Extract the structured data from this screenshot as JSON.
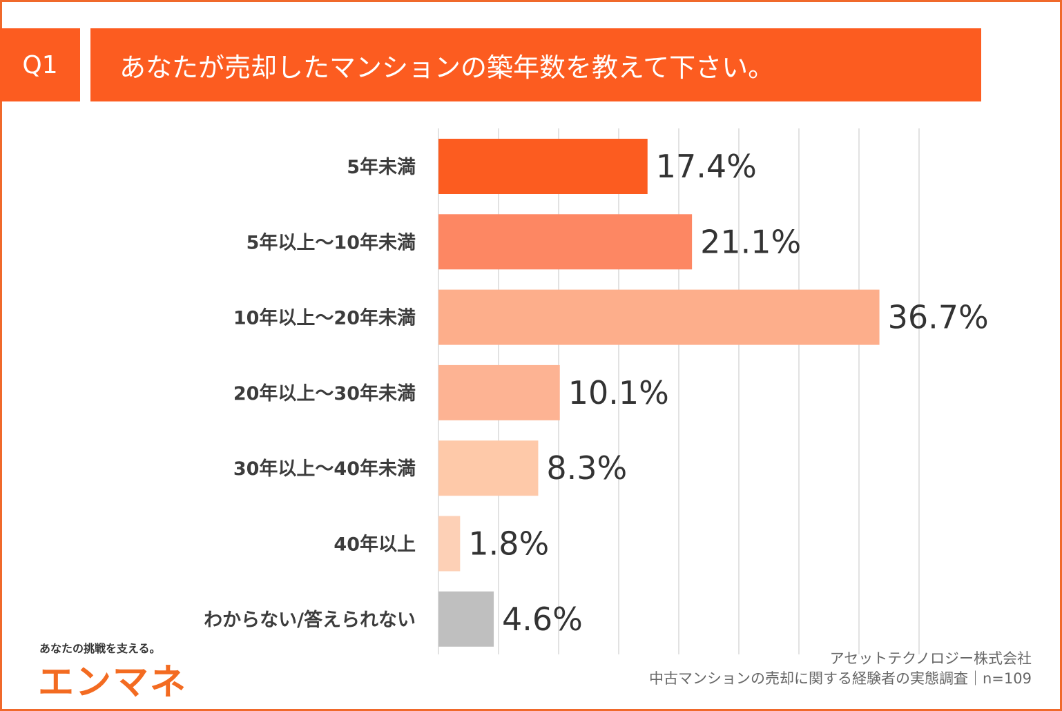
{
  "header": {
    "q_label": "Q1",
    "title": "あなたが売却したマンションの築年数を教えて下さい。"
  },
  "chart_data": {
    "type": "bar",
    "orientation": "horizontal",
    "title": "あなたが売却したマンションの築年数を教えて下さい。",
    "categories": [
      "5年未満",
      "5年以上〜10年未満",
      "10年以上〜20年未満",
      "20年以上〜30年未満",
      "30年以上〜40年未満",
      "40年以上",
      "わからない/答えられない"
    ],
    "values": [
      17.4,
      21.1,
      36.7,
      10.1,
      8.3,
      1.8,
      4.6
    ],
    "value_labels": [
      "17.4%",
      "21.1%",
      "36.7%",
      "10.1%",
      "8.3%",
      "1.8%",
      "4.6%"
    ],
    "bar_colors": [
      "#fc5c20",
      "#fd8763",
      "#fdae8b",
      "#fdb393",
      "#fec9a9",
      "#fdd0b6",
      "#bfbfbf"
    ],
    "xlim": [
      0,
      40
    ],
    "grid": true
  },
  "brand": {
    "tagline": "あなたの挑戦を支える。",
    "logo_text": "エンマネ",
    "color": "#f36b21"
  },
  "source": {
    "company": "アセットテクノロジー株式会社",
    "survey": "中古マンションの売却に関する経験者の実態調査｜n=109"
  }
}
